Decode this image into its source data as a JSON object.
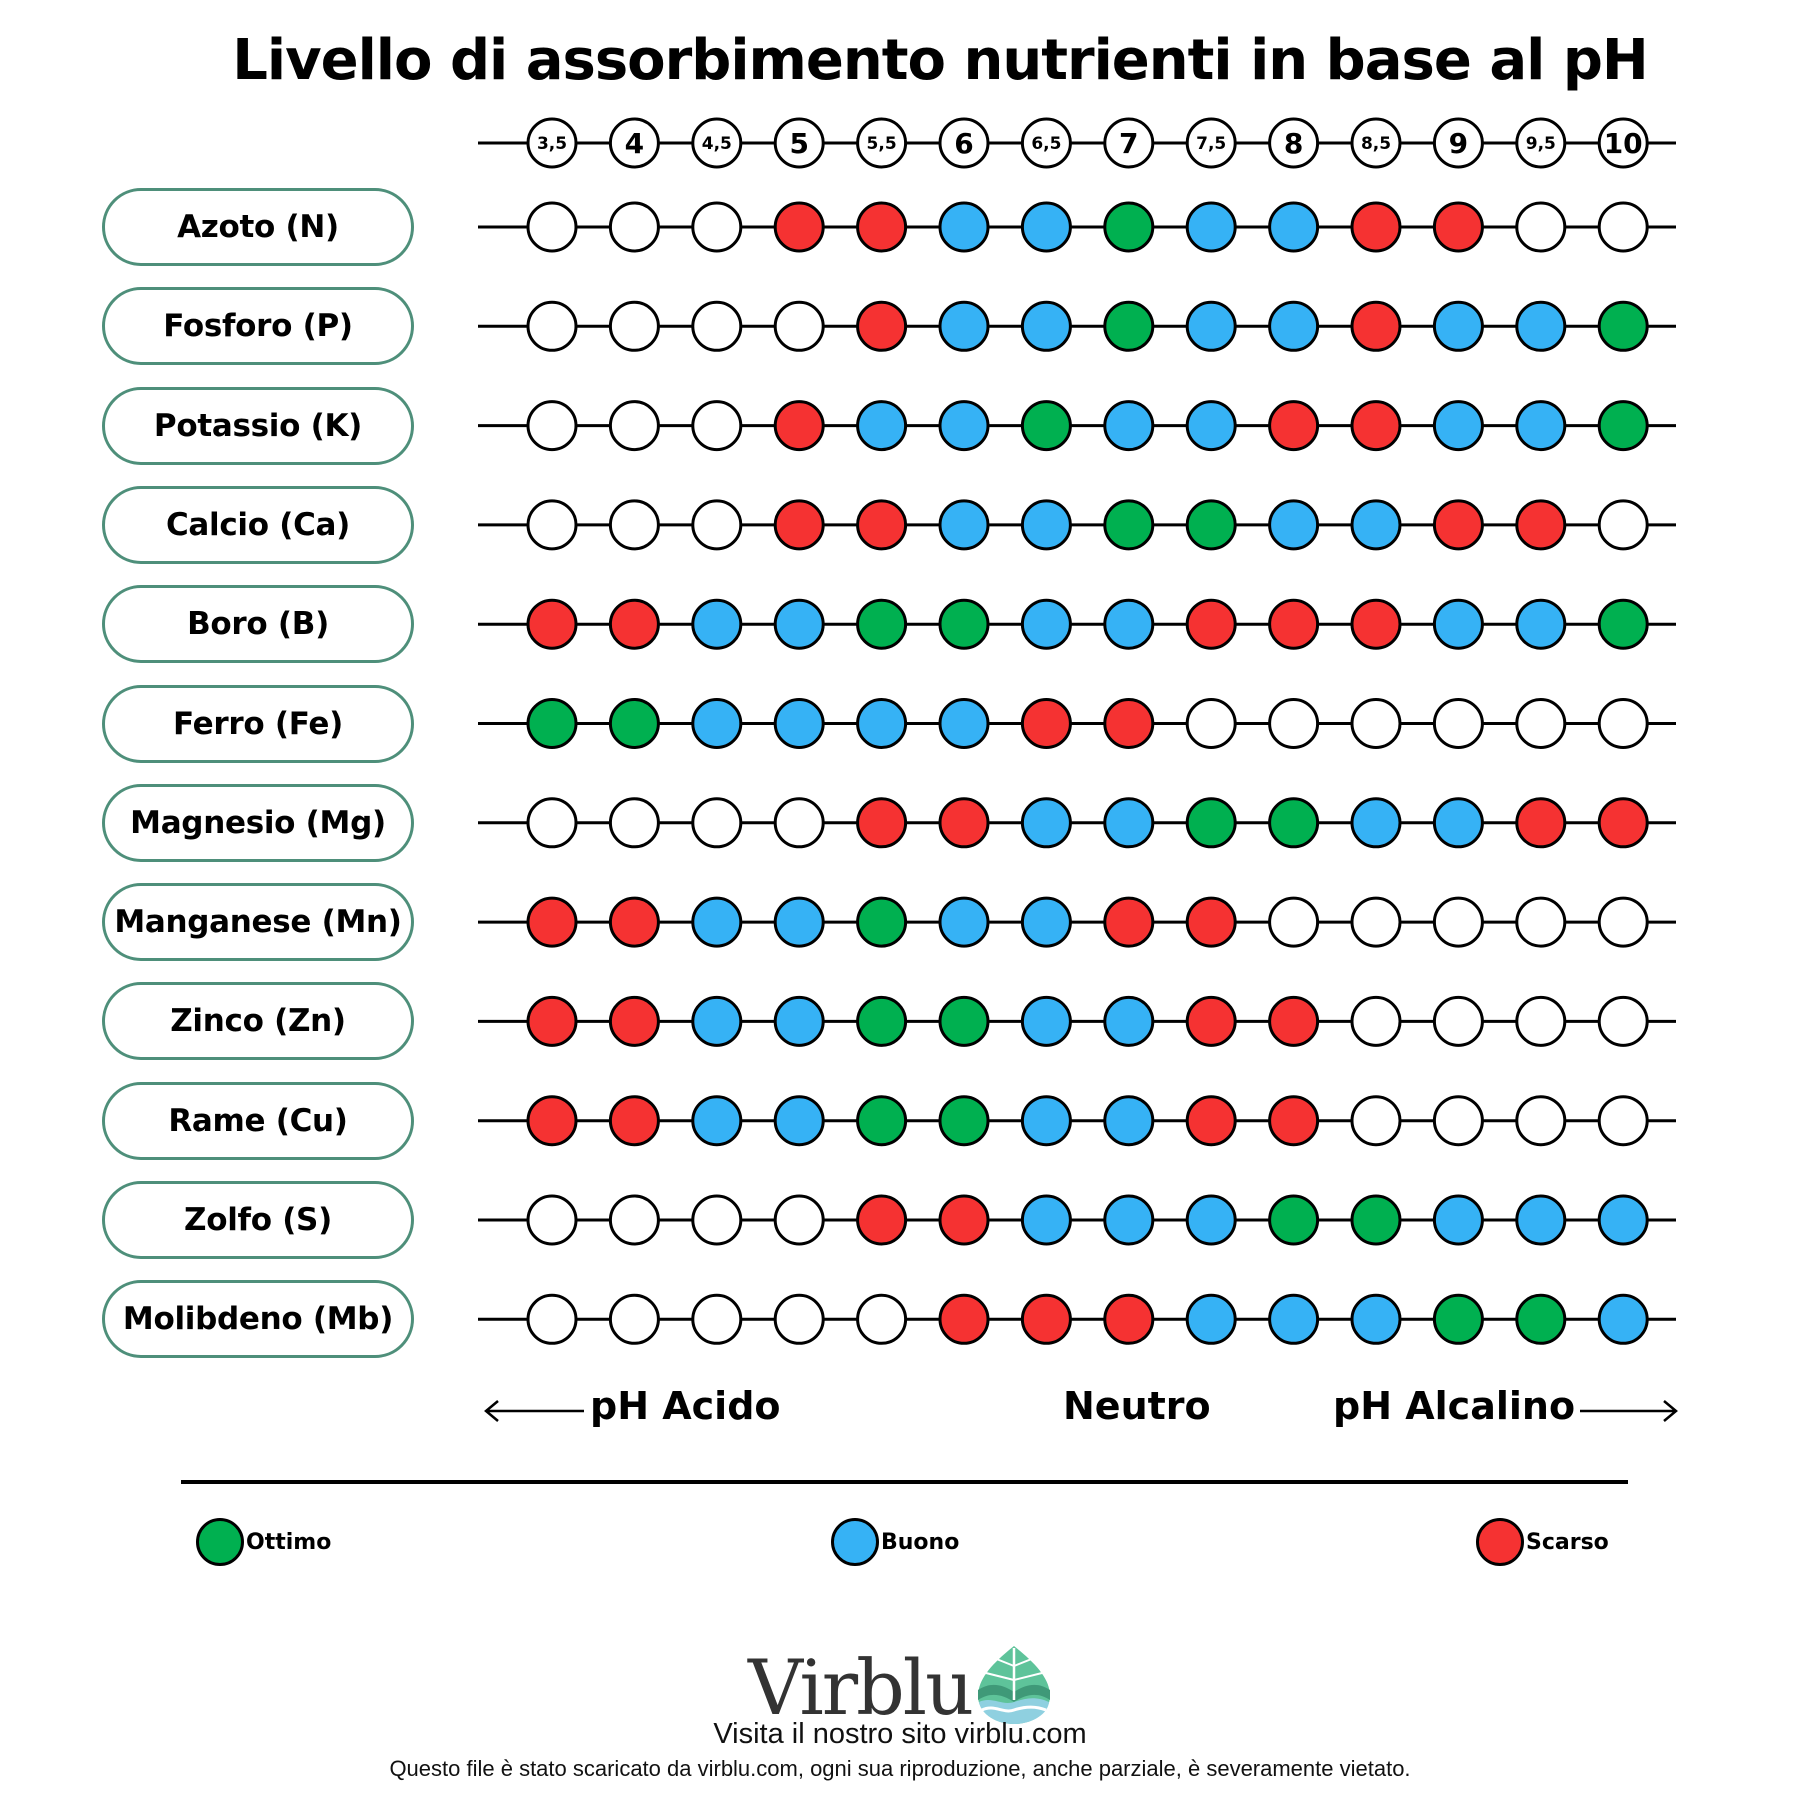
{
  "title": "Livello di assorbimento nutrienti in base al pH",
  "chart_data": {
    "type": "table",
    "title": "Livello di assorbimento nutrienti in base al pH",
    "x": [
      "3,5",
      "4",
      "4,5",
      "5",
      "5,5",
      "6",
      "6,5",
      "7",
      "7,5",
      "8",
      "8,5",
      "9",
      "9,5",
      "10"
    ],
    "levels": {
      "O": {
        "label": "Ottimo",
        "color": "#00b050"
      },
      "B": {
        "label": "Buono",
        "color": "#36b2f5"
      },
      "S": {
        "label": "Scarso",
        "color": "#f53232"
      },
      "N": {
        "label": "",
        "color": "#ffffff"
      }
    },
    "series": [
      {
        "name": "Azoto (N)",
        "values": [
          "N",
          "N",
          "N",
          "S",
          "S",
          "B",
          "B",
          "O",
          "B",
          "B",
          "S",
          "S",
          "N",
          "N"
        ]
      },
      {
        "name": "Fosforo (P)",
        "values": [
          "N",
          "N",
          "N",
          "N",
          "S",
          "B",
          "B",
          "O",
          "B",
          "B",
          "S",
          "B",
          "B",
          "O"
        ]
      },
      {
        "name": "Potassio (K)",
        "values": [
          "N",
          "N",
          "N",
          "S",
          "B",
          "B",
          "O",
          "B",
          "B",
          "S",
          "S",
          "B",
          "B",
          "O"
        ]
      },
      {
        "name": "Calcio (Ca)",
        "values": [
          "N",
          "N",
          "N",
          "S",
          "S",
          "B",
          "B",
          "O",
          "O",
          "B",
          "B",
          "S",
          "S",
          "N"
        ]
      },
      {
        "name": "Boro (B)",
        "values": [
          "S",
          "S",
          "B",
          "B",
          "O",
          "O",
          "B",
          "B",
          "S",
          "S",
          "S",
          "B",
          "B",
          "O"
        ]
      },
      {
        "name": "Ferro (Fe)",
        "values": [
          "O",
          "O",
          "B",
          "B",
          "B",
          "B",
          "S",
          "S",
          "N",
          "N",
          "N",
          "N",
          "N",
          "N"
        ]
      },
      {
        "name": "Magnesio (Mg)",
        "values": [
          "N",
          "N",
          "N",
          "N",
          "S",
          "S",
          "B",
          "B",
          "O",
          "O",
          "B",
          "B",
          "S",
          "S"
        ]
      },
      {
        "name": "Manganese (Mn)",
        "values": [
          "S",
          "S",
          "B",
          "B",
          "O",
          "B",
          "B",
          "S",
          "S",
          "N",
          "N",
          "N",
          "N",
          "N"
        ]
      },
      {
        "name": "Zinco (Zn)",
        "values": [
          "S",
          "S",
          "B",
          "B",
          "O",
          "O",
          "B",
          "B",
          "S",
          "S",
          "N",
          "N",
          "N",
          "N"
        ]
      },
      {
        "name": "Rame (Cu)",
        "values": [
          "S",
          "S",
          "B",
          "B",
          "O",
          "O",
          "B",
          "B",
          "S",
          "S",
          "N",
          "N",
          "N",
          "N"
        ]
      },
      {
        "name": "Zolfo (S)",
        "values": [
          "N",
          "N",
          "N",
          "N",
          "S",
          "S",
          "B",
          "B",
          "B",
          "O",
          "O",
          "B",
          "B",
          "B"
        ]
      },
      {
        "name": "Molibdeno (Mb)",
        "values": [
          "N",
          "N",
          "N",
          "N",
          "N",
          "S",
          "S",
          "S",
          "B",
          "B",
          "B",
          "O",
          "O",
          "B"
        ]
      }
    ],
    "xlabel_left": "pH Acido",
    "xlabel_center": "Neutro",
    "xlabel_right": "pH Alcalino",
    "legend": [
      {
        "label": "Ottimo",
        "color": "#00b050"
      },
      {
        "label": "Buono",
        "color": "#36b2f5"
      },
      {
        "label": "Scarso",
        "color": "#f53232"
      }
    ],
    "legend_position": "bottom"
  },
  "footer": {
    "brand": "Virblu",
    "visit": "Visita il nostro sito virblu.com",
    "disclaimer": "Questo file è stato scaricato da virblu.com, ogni sua riproduzione, anche parziale, è severamente vietato."
  },
  "colors": {
    "pill_border": "#4e8f7a",
    "logo_leaf_light": "#5ec39a",
    "logo_leaf_dark": "#3f9978",
    "logo_water": "#8fd0e0"
  }
}
